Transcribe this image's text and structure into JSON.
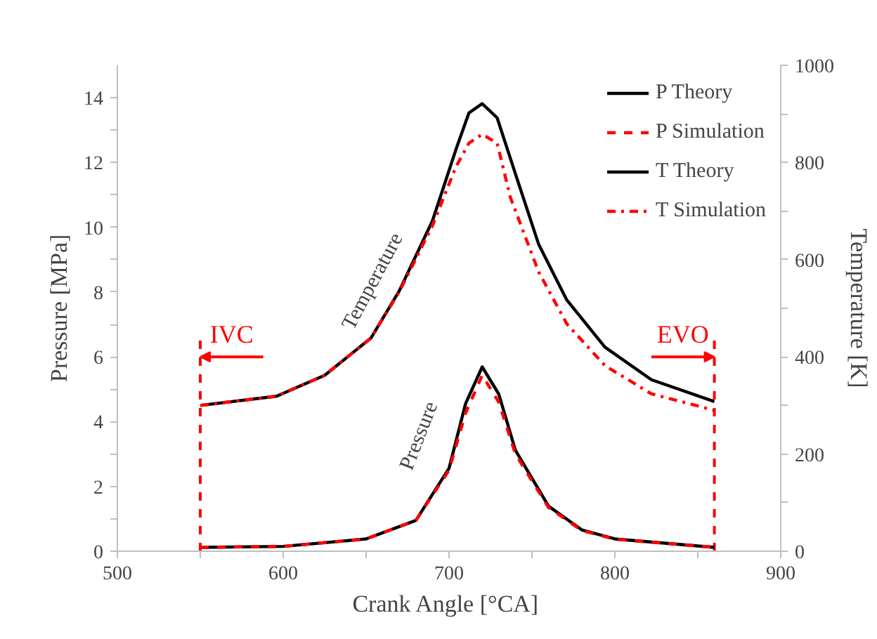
{
  "chart_data": {
    "type": "line",
    "xlabel": "Crank Angle  [°CA]",
    "ylabel": "Pressure [MPa]",
    "y2label": "Temperature [K]",
    "xlim": [
      500,
      900
    ],
    "xticks": [
      500,
      600,
      700,
      800,
      900
    ],
    "ylim": [
      0,
      15
    ],
    "yticks": [
      0,
      2,
      4,
      6,
      8,
      10,
      12,
      14
    ],
    "y2lim": [
      0,
      1000
    ],
    "y2ticks": [
      0,
      200,
      400,
      600,
      800,
      1000
    ],
    "grid": false,
    "legend": "top right",
    "series": [
      {
        "name": "P Theory",
        "color": "#000000",
        "line_style": "solid",
        "x": [
          550,
          600,
          650,
          680,
          700,
          710,
          720,
          730,
          740,
          760,
          780,
          800,
          860
        ],
        "values": [
          0.12,
          0.15,
          0.38,
          0.95,
          2.56,
          4.56,
          5.69,
          4.85,
          3.12,
          1.39,
          0.66,
          0.38,
          0.12
        ]
      },
      {
        "name": "P Simulation",
        "color": "#ff0000",
        "line_style": "dashed",
        "x": [
          550,
          600,
          650,
          680,
          700,
          710,
          720,
          730,
          740,
          760,
          780,
          800,
          860
        ],
        "values": [
          0.12,
          0.15,
          0.38,
          0.95,
          2.5,
          4.27,
          5.43,
          4.6,
          3.0,
          1.35,
          0.64,
          0.37,
          0.12
        ]
      },
      {
        "name": "T Theory",
        "color": "#000000",
        "line_style": "solid",
        "axis": "y2",
        "x": [
          550,
          596,
          625,
          653,
          670,
          690,
          704,
          712,
          720,
          729,
          740,
          754,
          771,
          794,
          822,
          860
        ],
        "values": [
          300,
          319,
          362,
          439,
          536,
          680,
          825,
          902,
          921,
          892,
          777,
          632,
          517,
          420,
          353,
          308
        ]
      },
      {
        "name": "T Simulation",
        "color": "#ff0000",
        "line_style": "dashdot",
        "axis": "y2",
        "x": [
          550,
          596,
          625,
          653,
          670,
          690,
          704,
          712,
          720,
          729,
          737,
          754,
          771,
          794,
          822,
          860
        ],
        "values": [
          300,
          319,
          362,
          439,
          534,
          670,
          790,
          840,
          858,
          840,
          728,
          575,
          468,
          382,
          324,
          290
        ]
      }
    ],
    "ref_lines": [
      {
        "axis": "x",
        "value": 550,
        "label": "IVC",
        "color": "#ff0000",
        "line_style": "dashed"
      },
      {
        "axis": "x",
        "value": 860,
        "label": "EVO",
        "color": "#ff0000",
        "line_style": "dashed"
      }
    ],
    "annotations": [
      "Temperature",
      "Pressure"
    ]
  }
}
